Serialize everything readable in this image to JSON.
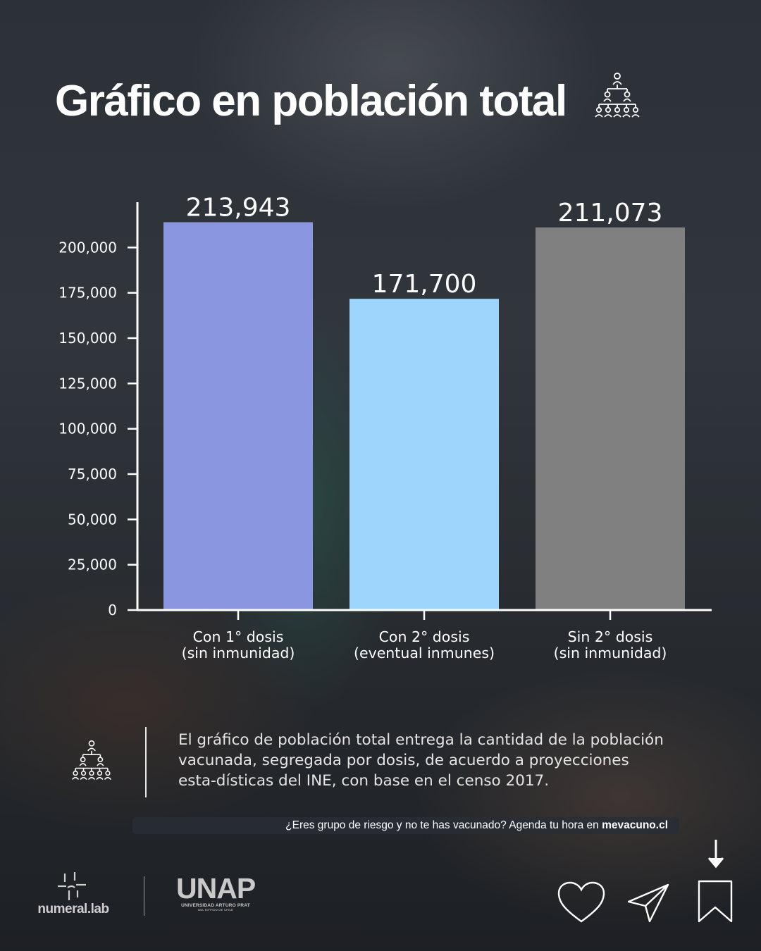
{
  "title": "Gráfico en población total",
  "icons": {
    "title": "population-pyramid-icon",
    "description": "population-pyramid-icon",
    "actions": [
      "heart-icon",
      "send-icon",
      "arrow-down-icon",
      "bookmark-icon"
    ]
  },
  "chart_data": {
    "type": "bar",
    "categories": [
      [
        "Con 1° dosis",
        "(sin inmunidad)"
      ],
      [
        "Con 2° dosis",
        "(eventual inmunes)"
      ],
      [
        "Sin 2° dosis",
        "(sin inmunidad)"
      ]
    ],
    "values": [
      213943,
      171700,
      211073
    ],
    "data_labels": [
      "213,943",
      "171,700",
      "211,073"
    ],
    "colors": [
      "#8a97e0",
      "#9dd5fd",
      "#808080"
    ],
    "ylim": [
      0,
      225000
    ],
    "yticks": [
      0,
      25000,
      50000,
      75000,
      100000,
      125000,
      150000,
      175000,
      200000
    ],
    "ytick_labels": [
      "0",
      "25,000",
      "50,000",
      "75,000",
      "100,000",
      "125,000",
      "150,000",
      "175,000",
      "200,000"
    ],
    "grid": false,
    "legend": "none",
    "xlabel": "",
    "ylabel": ""
  },
  "description": "El gráfico de población total entrega la cantidad de la población vacunada, segregada por dosis, de acuerdo a proyecciones esta-dísticas del INE, con base en el censo 2017.",
  "cta": {
    "text": "¿Eres grupo de riesgo y no te has vacunado? Agenda tu hora en ",
    "link": "mevacuno.cl"
  },
  "logos": {
    "numeral": "numeral.lab",
    "unap": "UNAP",
    "unap_sub1": "UNIVERSIDAD ARTURO PRAT",
    "unap_sub2": "DEL ESTADO DE CHILE"
  }
}
